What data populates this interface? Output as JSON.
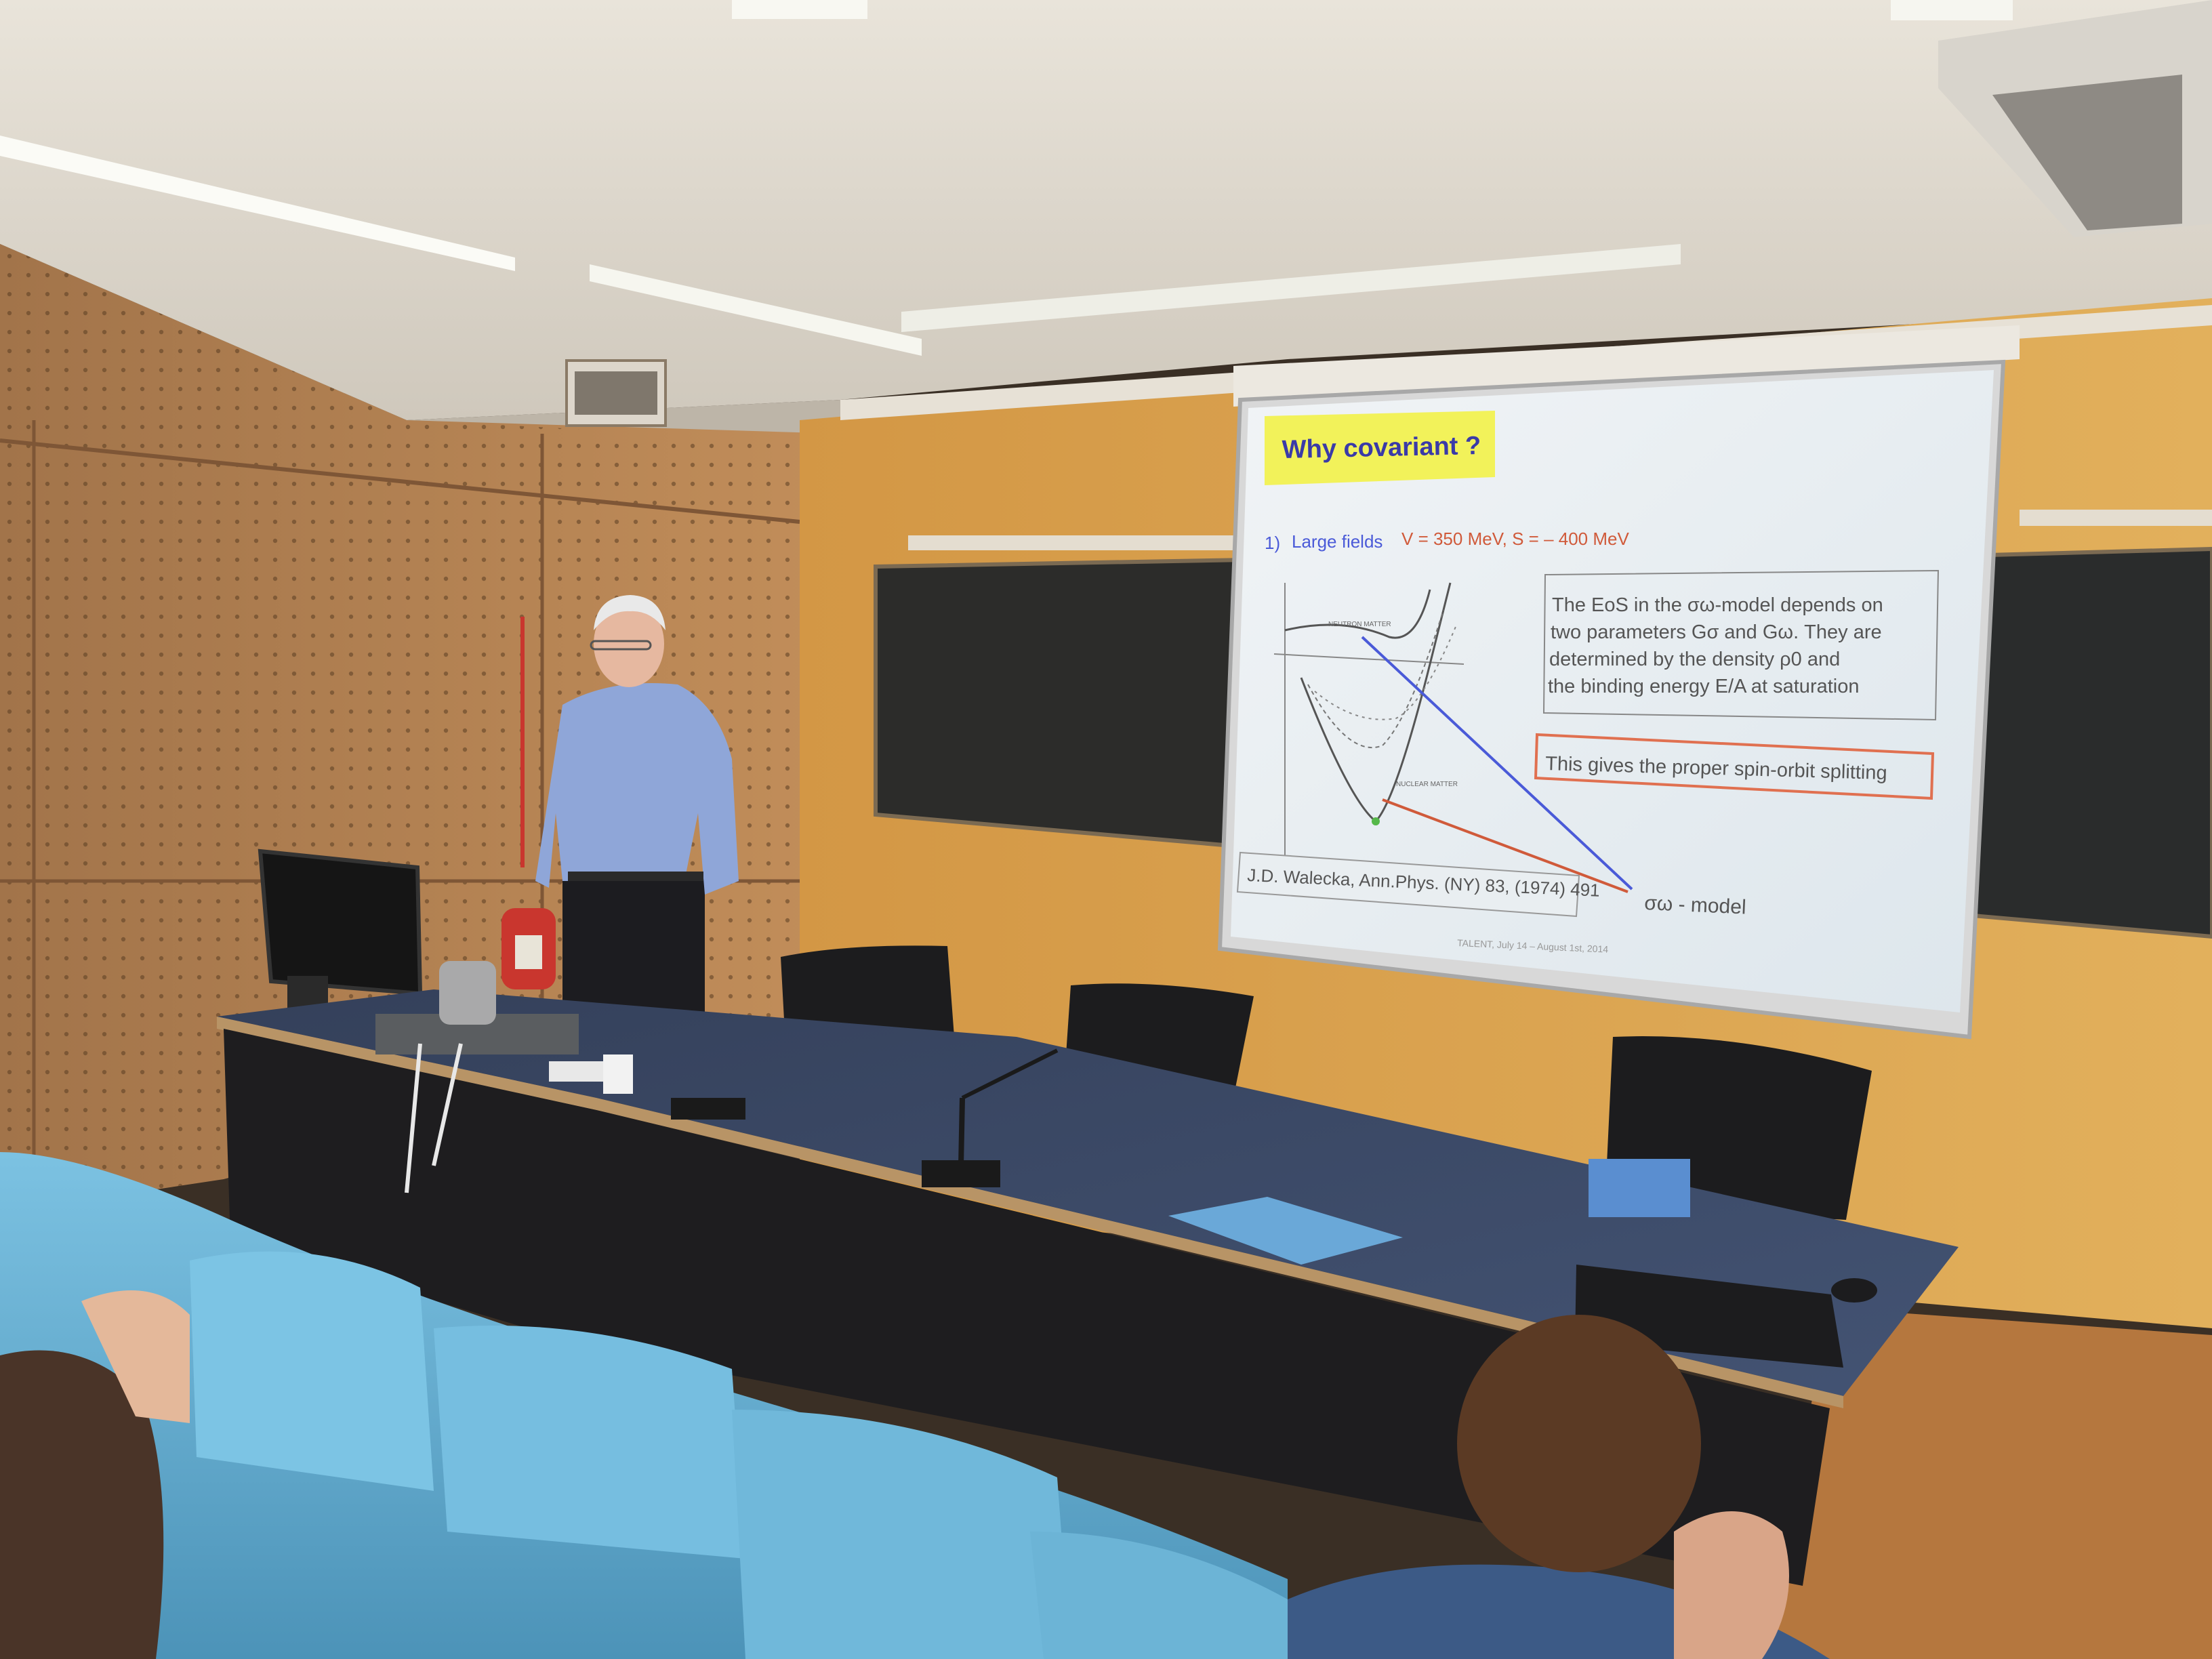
{
  "slide": {
    "title": "Why covariant ?",
    "point_number": "1)",
    "point_label": "Large fields",
    "point_values": "V = 350 MeV, S = – 400 MeV",
    "box_lines": [
      "The EoS in the σω-model depends on",
      "two parameters Gσ and Gω. They are",
      "determined by the density ρ0 and",
      "the binding energy E/A at saturation"
    ],
    "spin_orbit": "This gives the proper spin-orbit splitting",
    "reference": "J.D. Walecka, Ann.Phys. (NY) 83, (1974) 491",
    "model_label": "σω - model",
    "plot_label_top": "NEUTRON MATTER",
    "plot_label_bottom": "NUCLEAR MATTER",
    "footer": "TALENT, July 14 – August 1st, 2014"
  },
  "colors": {
    "title_highlight": "#f2f25a",
    "title_text": "#3a3aa8",
    "point_blue": "#4a5ad8",
    "point_red": "#d05a3a",
    "spin_box_border": "#e07050",
    "screen_bg": "#e6eef3",
    "wall": "#d9a24e",
    "table": "#3c4a62",
    "seats": "#6ab4d6"
  }
}
